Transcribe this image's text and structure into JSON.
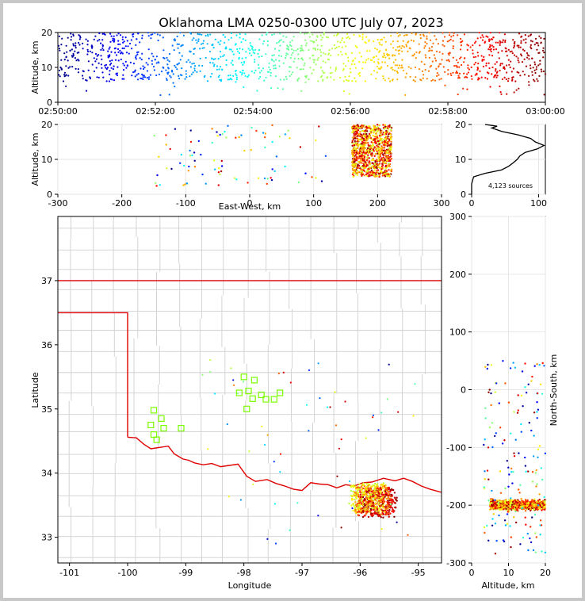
{
  "chart_data": [
    {
      "id": "time_altitude",
      "type": "scatter",
      "title": "Oklahoma LMA 0250-0300 UTC July 07, 2023",
      "ylabel": "Altitude, km",
      "xlim": [
        "02:50:00",
        "03:00:00"
      ],
      "ylim": [
        0,
        20
      ],
      "xticks": [
        "02:50:00",
        "02:52:00",
        "02:54:00",
        "02:56:00",
        "02:58:00",
        "03:00:00"
      ],
      "yticks": [
        "0",
        "10",
        "20"
      ],
      "color_scale": "jet, by time",
      "altitude_band_km": [
        6,
        20
      ]
    },
    {
      "id": "ew_altitude",
      "type": "scatter",
      "xlabel": "East-West, km",
      "ylabel": "Altitude, km",
      "xlim": [
        -300,
        300
      ],
      "ylim": [
        0,
        20
      ],
      "xticks": [
        "-300",
        "-200",
        "-100",
        "0",
        "100",
        "200",
        "300"
      ],
      "yticks": [
        "0",
        "10",
        "20"
      ],
      "main_cluster_km": {
        "x": [
          160,
          225
        ],
        "z": [
          5,
          20
        ]
      }
    },
    {
      "id": "altitude_histogram",
      "type": "line",
      "xlim": [
        0,
        110
      ],
      "ylim": [
        0,
        20
      ],
      "xticks": [
        "0",
        "100"
      ],
      "yticks": [
        "0",
        "10",
        "20"
      ],
      "annotation": "4,123 sources",
      "profile": [
        [
          0,
          0
        ],
        [
          0,
          3
        ],
        [
          3,
          5
        ],
        [
          20,
          6
        ],
        [
          45,
          7
        ],
        [
          55,
          8
        ],
        [
          62,
          9
        ],
        [
          68,
          10
        ],
        [
          72,
          11
        ],
        [
          80,
          12
        ],
        [
          98,
          13
        ],
        [
          108,
          14
        ],
        [
          95,
          15
        ],
        [
          88,
          16
        ],
        [
          70,
          17
        ],
        [
          45,
          18
        ],
        [
          30,
          19
        ],
        [
          38,
          19.5
        ],
        [
          20,
          20
        ]
      ]
    },
    {
      "id": "plan_view_map",
      "type": "scatter",
      "xlabel": "Longitude",
      "ylabel": "Latitude",
      "xlim": [
        -101.2,
        -94.6
      ],
      "ylim": [
        32.6,
        38.0
      ],
      "xticks": [
        "-101",
        "-100",
        "-99",
        "-98",
        "-97",
        "-96",
        "-95"
      ],
      "yticks": [
        "33",
        "34",
        "35",
        "36",
        "37"
      ],
      "main_cluster": {
        "lon": [
          -96.2,
          -95.6
        ],
        "lat": [
          33.3,
          33.75
        ]
      },
      "stations": [
        [
          -99.55,
          34.98
        ],
        [
          -99.42,
          34.85
        ],
        [
          -99.6,
          34.75
        ],
        [
          -99.38,
          34.7
        ],
        [
          -99.55,
          34.6
        ],
        [
          -99.5,
          34.52
        ],
        [
          -99.08,
          34.7
        ],
        [
          -98.0,
          35.5
        ],
        [
          -97.82,
          35.45
        ],
        [
          -98.08,
          35.25
        ],
        [
          -97.92,
          35.28
        ],
        [
          -97.7,
          35.22
        ],
        [
          -97.85,
          35.16
        ],
        [
          -97.62,
          35.15
        ],
        [
          -97.48,
          35.15
        ],
        [
          -97.38,
          35.25
        ],
        [
          -97.95,
          35.0
        ]
      ],
      "state_border": [
        [
          -103,
          37
        ],
        [
          -94.6,
          37
        ]
      ],
      "panhandle_border": [
        [
          -103,
          36.5
        ],
        [
          -100,
          36.5
        ],
        [
          -100,
          34.56
        ]
      ],
      "red_river": [
        [
          -100,
          34.56
        ],
        [
          -99.85,
          34.55
        ],
        [
          -99.72,
          34.45
        ],
        [
          -99.6,
          34.38
        ],
        [
          -99.45,
          34.4
        ],
        [
          -99.3,
          34.42
        ],
        [
          -99.2,
          34.3
        ],
        [
          -99.05,
          34.22
        ],
        [
          -98.95,
          34.2
        ],
        [
          -98.85,
          34.16
        ],
        [
          -98.7,
          34.13
        ],
        [
          -98.55,
          34.15
        ],
        [
          -98.4,
          34.1
        ],
        [
          -98.25,
          34.12
        ],
        [
          -98.1,
          34.14
        ],
        [
          -97.95,
          33.95
        ],
        [
          -97.8,
          33.87
        ],
        [
          -97.6,
          33.9
        ],
        [
          -97.45,
          33.84
        ],
        [
          -97.3,
          33.8
        ],
        [
          -97.15,
          33.75
        ],
        [
          -97.0,
          33.73
        ],
        [
          -96.85,
          33.85
        ],
        [
          -96.7,
          33.83
        ],
        [
          -96.55,
          33.82
        ],
        [
          -96.4,
          33.77
        ],
        [
          -96.25,
          33.82
        ],
        [
          -96.1,
          33.8
        ],
        [
          -95.95,
          33.85
        ],
        [
          -95.8,
          33.86
        ],
        [
          -95.6,
          33.92
        ],
        [
          -95.4,
          33.88
        ],
        [
          -95.25,
          33.92
        ],
        [
          -95.1,
          33.87
        ],
        [
          -94.95,
          33.8
        ],
        [
          -94.8,
          33.75
        ],
        [
          -94.6,
          33.7
        ]
      ]
    },
    {
      "id": "altitude_ns",
      "type": "scatter",
      "xlabel": "Altitude, km",
      "ylabel": "North-South, km",
      "xlim": [
        0,
        20
      ],
      "ylim": [
        -300,
        300
      ],
      "xticks": [
        "0",
        "10",
        "20"
      ],
      "yticks": [
        "-300",
        "-200",
        "-100",
        "0",
        "100",
        "200",
        "300"
      ],
      "main_cluster_km": {
        "z": [
          5,
          20
        ],
        "y": [
          -210,
          -175
        ]
      }
    }
  ],
  "colors": {
    "map_border": "#e00000",
    "county_lines": "#cfcfcf",
    "station": "#7CFC00",
    "profile_line": "#000000"
  }
}
